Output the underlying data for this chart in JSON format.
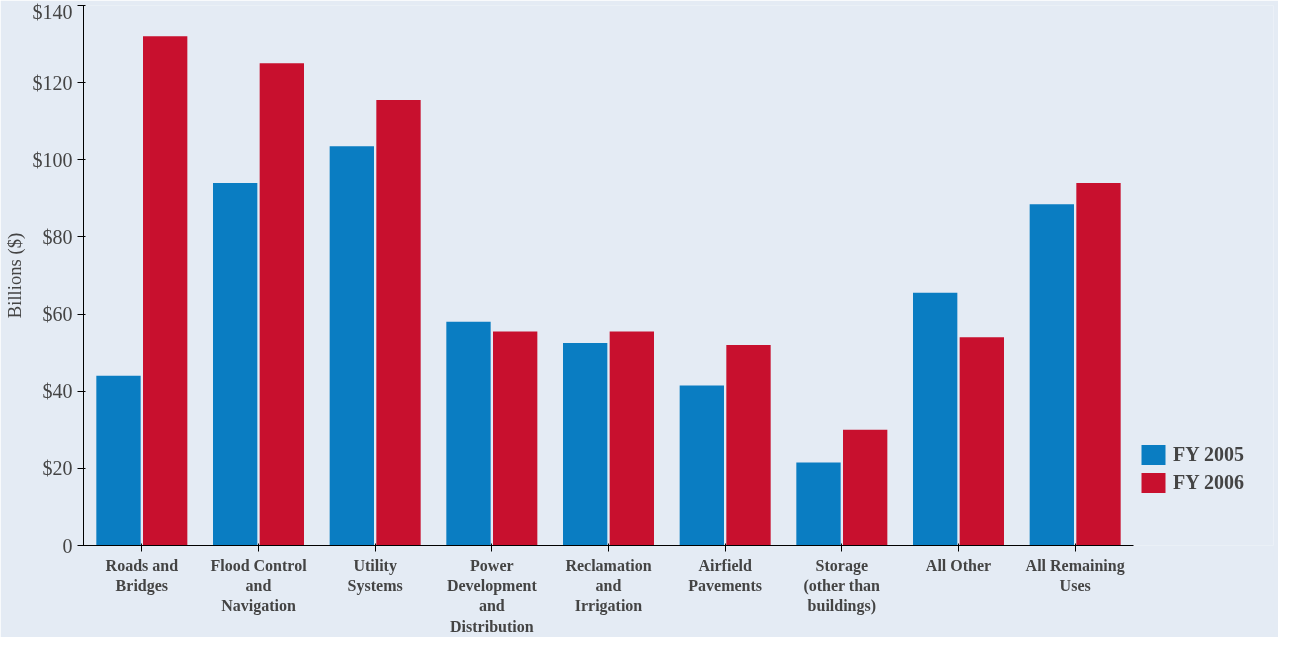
{
  "chart_data": {
    "type": "bar",
    "ylabel": "Billions ($)",
    "categories": [
      "Roads and Bridges",
      "Flood Control and Navigation",
      "Utility Systems",
      "Power Development and Distribution",
      "Reclamation and Irrigation",
      "Airfield Pavements",
      "Storage (other than buildings)",
      "All Other",
      "All Remaining Uses"
    ],
    "series": [
      {
        "name": "FY 2005",
        "color": "#0a7dc2",
        "values": [
          44,
          94,
          103.5,
          58,
          52.5,
          41.5,
          21.5,
          65.5,
          88.5
        ]
      },
      {
        "name": "FY 2006",
        "color": "#c8102e",
        "values": [
          132,
          125,
          115.5,
          55.5,
          55.5,
          52,
          30,
          54,
          94
        ]
      }
    ],
    "ylim": [
      0,
      140
    ],
    "yticks": [
      {
        "value": 0,
        "label": "0"
      },
      {
        "value": 20,
        "label": "$20"
      },
      {
        "value": 40,
        "label": "$40"
      },
      {
        "value": 60,
        "label": "$60"
      },
      {
        "value": 80,
        "label": "$80"
      },
      {
        "value": 100,
        "label": "$100"
      },
      {
        "value": 120,
        "label": "$120"
      },
      {
        "value": 140,
        "label": "$140"
      }
    ],
    "grid": false,
    "legend": "right"
  }
}
